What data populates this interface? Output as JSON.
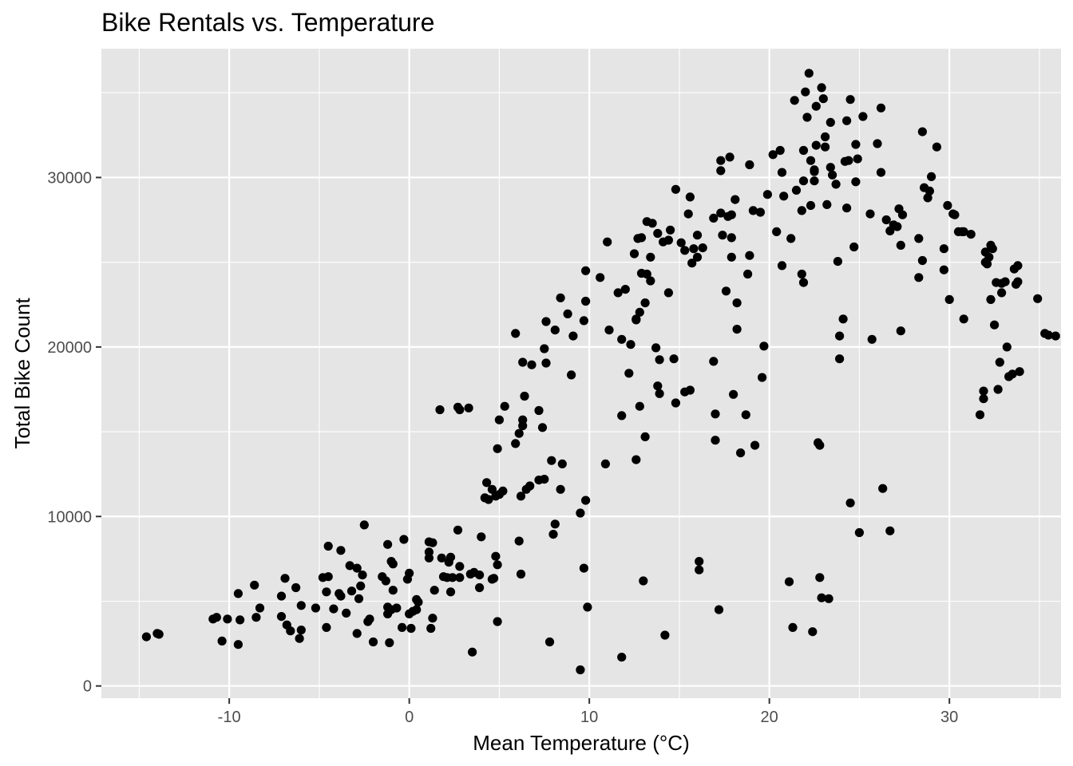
{
  "chart_data": {
    "type": "scatter",
    "title": "Bike Rentals vs. Temperature",
    "xlabel": "Mean Temperature (°C)",
    "ylabel": "Total Bike Count",
    "xlim": [
      -17.1,
      36.2
    ],
    "ylim": [
      -720,
      37600
    ],
    "x_ticks": [
      -10,
      0,
      10,
      20,
      30
    ],
    "x_tick_labels": [
      "-10",
      "0",
      "10",
      "20",
      "30"
    ],
    "y_ticks": [
      0,
      10000,
      20000,
      30000
    ],
    "y_tick_labels": [
      "0",
      "10000",
      "20000",
      "30000"
    ],
    "grid": true,
    "legend": "none",
    "colors": {
      "panel": "#e5e5e5",
      "grid": "#ffffff",
      "point": "#000000",
      "tick": "#4d4d4d"
    },
    "points": [
      [
        -14.6,
        2900
      ],
      [
        -14.0,
        3100
      ],
      [
        -13.9,
        3050
      ],
      [
        -10.9,
        3950
      ],
      [
        -10.7,
        4050
      ],
      [
        -10.4,
        2650
      ],
      [
        -10.1,
        3950
      ],
      [
        -9.5,
        5450
      ],
      [
        -9.4,
        3900
      ],
      [
        -9.5,
        2450
      ],
      [
        -8.6,
        5950
      ],
      [
        -8.5,
        4050
      ],
      [
        -8.3,
        4600
      ],
      [
        -7.1,
        5300
      ],
      [
        -7.1,
        4100
      ],
      [
        -6.9,
        6350
      ],
      [
        -6.8,
        3600
      ],
      [
        -6.6,
        3250
      ],
      [
        -6.3,
        5800
      ],
      [
        -6.1,
        2800
      ],
      [
        -6.0,
        4750
      ],
      [
        -6.0,
        3300
      ],
      [
        -5.2,
        4600
      ],
      [
        -4.8,
        6400
      ],
      [
        -4.6,
        5550
      ],
      [
        -4.6,
        3450
      ],
      [
        -4.5,
        6450
      ],
      [
        -4.5,
        8250
      ],
      [
        -4.2,
        4550
      ],
      [
        -3.9,
        5450
      ],
      [
        -3.8,
        8000
      ],
      [
        -3.8,
        5300
      ],
      [
        -3.5,
        4300
      ],
      [
        -3.3,
        7100
      ],
      [
        -3.2,
        5600
      ],
      [
        -2.9,
        6950
      ],
      [
        -2.9,
        3100
      ],
      [
        -2.8,
        5150
      ],
      [
        -2.7,
        5900
      ],
      [
        -2.6,
        6550
      ],
      [
        -2.5,
        9500
      ],
      [
        -2.3,
        3800
      ],
      [
        -2.2,
        3950
      ],
      [
        -2.0,
        2600
      ],
      [
        -1.5,
        6450
      ],
      [
        -1.3,
        6200
      ],
      [
        -1.2,
        4250
      ],
      [
        -1.2,
        4650
      ],
      [
        -1.2,
        8350
      ],
      [
        -1.1,
        2550
      ],
      [
        -1.0,
        4500
      ],
      [
        -1.0,
        7350
      ],
      [
        -0.9,
        7200
      ],
      [
        -0.9,
        5650
      ],
      [
        -0.7,
        4600
      ],
      [
        -0.4,
        3450
      ],
      [
        -0.3,
        8650
      ],
      [
        -0.1,
        6300
      ],
      [
        0.0,
        6650
      ],
      [
        0.0,
        4250
      ],
      [
        0.1,
        3400
      ],
      [
        0.2,
        4400
      ],
      [
        0.4,
        5100
      ],
      [
        0.4,
        4500
      ],
      [
        0.5,
        4950
      ],
      [
        1.1,
        7550
      ],
      [
        1.1,
        7900
      ],
      [
        1.1,
        8500
      ],
      [
        1.2,
        3400
      ],
      [
        1.3,
        4000
      ],
      [
        1.3,
        8450
      ],
      [
        1.4,
        5650
      ],
      [
        1.7,
        16300
      ],
      [
        1.8,
        7550
      ],
      [
        1.9,
        6450
      ],
      [
        2.1,
        6400
      ],
      [
        2.2,
        7300
      ],
      [
        2.3,
        7600
      ],
      [
        2.3,
        5550
      ],
      [
        2.4,
        6400
      ],
      [
        2.7,
        16450
      ],
      [
        2.7,
        9200
      ],
      [
        2.8,
        7050
      ],
      [
        2.8,
        16300
      ],
      [
        2.8,
        6400
      ],
      [
        3.3,
        16400
      ],
      [
        3.4,
        6600
      ],
      [
        3.5,
        2000
      ],
      [
        3.6,
        6700
      ],
      [
        3.9,
        5800
      ],
      [
        3.9,
        6550
      ],
      [
        4.0,
        8800
      ],
      [
        4.2,
        11100
      ],
      [
        4.3,
        12000
      ],
      [
        4.4,
        11000
      ],
      [
        4.6,
        6300
      ],
      [
        4.6,
        11600
      ],
      [
        4.7,
        6350
      ],
      [
        4.8,
        7650
      ],
      [
        4.8,
        11200
      ],
      [
        4.9,
        14000
      ],
      [
        4.9,
        7150
      ],
      [
        4.9,
        3800
      ],
      [
        5.0,
        11300
      ],
      [
        5.0,
        15700
      ],
      [
        5.2,
        11500
      ],
      [
        5.3,
        16500
      ],
      [
        5.9,
        20800
      ],
      [
        5.9,
        14300
      ],
      [
        6.1,
        8550
      ],
      [
        6.1,
        14900
      ],
      [
        6.2,
        6600
      ],
      [
        6.2,
        11200
      ],
      [
        6.3,
        19100
      ],
      [
        6.3,
        15700
      ],
      [
        6.3,
        15350
      ],
      [
        6.4,
        17100
      ],
      [
        6.5,
        11600
      ],
      [
        6.7,
        11800
      ],
      [
        6.8,
        18950
      ],
      [
        7.2,
        16250
      ],
      [
        7.2,
        12150
      ],
      [
        7.4,
        15250
      ],
      [
        7.5,
        19900
      ],
      [
        7.5,
        12200
      ],
      [
        7.6,
        19050
      ],
      [
        7.6,
        21500
      ],
      [
        7.8,
        2600
      ],
      [
        7.9,
        13300
      ],
      [
        8.0,
        8950
      ],
      [
        8.1,
        21000
      ],
      [
        8.1,
        9550
      ],
      [
        8.4,
        22900
      ],
      [
        8.4,
        11600
      ],
      [
        8.5,
        13100
      ],
      [
        8.8,
        21950
      ],
      [
        9.0,
        18350
      ],
      [
        9.1,
        20650
      ],
      [
        9.5,
        10200
      ],
      [
        9.5,
        950
      ],
      [
        9.7,
        6950
      ],
      [
        9.7,
        21550
      ],
      [
        9.8,
        22700
      ],
      [
        9.8,
        24500
      ],
      [
        9.8,
        10950
      ],
      [
        9.9,
        4650
      ],
      [
        10.6,
        24100
      ],
      [
        10.9,
        13100
      ],
      [
        11.0,
        26200
      ],
      [
        11.1,
        21000
      ],
      [
        11.6,
        23200
      ],
      [
        11.8,
        20450
      ],
      [
        11.8,
        15950
      ],
      [
        11.8,
        1700
      ],
      [
        12.0,
        23400
      ],
      [
        12.2,
        18450
      ],
      [
        12.3,
        20150
      ],
      [
        12.5,
        25500
      ],
      [
        12.6,
        21650
      ],
      [
        12.6,
        21600
      ],
      [
        12.6,
        13350
      ],
      [
        12.7,
        26400
      ],
      [
        12.8,
        22050
      ],
      [
        12.8,
        16500
      ],
      [
        12.9,
        24350
      ],
      [
        12.9,
        26450
      ],
      [
        13.0,
        6200
      ],
      [
        13.1,
        22600
      ],
      [
        13.1,
        14700
      ],
      [
        13.2,
        27400
      ],
      [
        13.2,
        24300
      ],
      [
        13.4,
        23900
      ],
      [
        13.4,
        25300
      ],
      [
        13.5,
        27300
      ],
      [
        13.7,
        19950
      ],
      [
        13.8,
        17700
      ],
      [
        13.8,
        26700
      ],
      [
        13.9,
        19250
      ],
      [
        13.9,
        17250
      ],
      [
        14.1,
        26200
      ],
      [
        14.2,
        3000
      ],
      [
        14.4,
        26300
      ],
      [
        14.4,
        23200
      ],
      [
        14.5,
        26900
      ],
      [
        14.7,
        19300
      ],
      [
        14.8,
        16700
      ],
      [
        14.8,
        29300
      ],
      [
        15.1,
        26150
      ],
      [
        15.3,
        25700
      ],
      [
        15.3,
        17350
      ],
      [
        15.5,
        27850
      ],
      [
        15.6,
        28850
      ],
      [
        15.6,
        17450
      ],
      [
        15.7,
        24950
      ],
      [
        15.8,
        25800
      ],
      [
        16.0,
        26600
      ],
      [
        16.0,
        25300
      ],
      [
        16.1,
        7350
      ],
      [
        16.1,
        6850
      ],
      [
        16.3,
        25850
      ],
      [
        16.9,
        27600
      ],
      [
        16.9,
        19150
      ],
      [
        17.0,
        16050
      ],
      [
        17.0,
        14500
      ],
      [
        17.2,
        4500
      ],
      [
        17.3,
        31000
      ],
      [
        17.3,
        27900
      ],
      [
        17.3,
        30400
      ],
      [
        17.4,
        26600
      ],
      [
        17.6,
        23300
      ],
      [
        17.7,
        27700
      ],
      [
        17.8,
        31200
      ],
      [
        17.9,
        27800
      ],
      [
        17.9,
        26450
      ],
      [
        17.9,
        25300
      ],
      [
        18.0,
        17200
      ],
      [
        18.1,
        28700
      ],
      [
        18.2,
        21050
      ],
      [
        18.2,
        22600
      ],
      [
        18.4,
        13750
      ],
      [
        18.7,
        16000
      ],
      [
        18.8,
        24300
      ],
      [
        18.9,
        25400
      ],
      [
        18.9,
        30750
      ],
      [
        19.1,
        28050
      ],
      [
        19.2,
        14200
      ],
      [
        19.5,
        27950
      ],
      [
        19.6,
        18200
      ],
      [
        19.7,
        20050
      ],
      [
        19.9,
        29000
      ],
      [
        20.2,
        31350
      ],
      [
        20.4,
        26800
      ],
      [
        20.6,
        31600
      ],
      [
        20.7,
        24800
      ],
      [
        20.7,
        30300
      ],
      [
        20.8,
        28900
      ],
      [
        21.1,
        6150
      ],
      [
        21.2,
        26400
      ],
      [
        21.3,
        3450
      ],
      [
        21.4,
        34550
      ],
      [
        21.5,
        29250
      ],
      [
        21.8,
        24300
      ],
      [
        21.8,
        28050
      ],
      [
        21.9,
        31600
      ],
      [
        21.9,
        23800
      ],
      [
        21.9,
        29800
      ],
      [
        22.0,
        35050
      ],
      [
        22.1,
        33550
      ],
      [
        22.2,
        36150
      ],
      [
        22.3,
        31000
      ],
      [
        22.3,
        28350
      ],
      [
        22.4,
        3200
      ],
      [
        22.5,
        30350
      ],
      [
        22.5,
        29800
      ],
      [
        22.5,
        30450
      ],
      [
        22.6,
        34200
      ],
      [
        22.6,
        31900
      ],
      [
        22.7,
        14350
      ],
      [
        22.8,
        14200
      ],
      [
        22.8,
        6400
      ],
      [
        22.9,
        5200
      ],
      [
        22.9,
        35300
      ],
      [
        23.0,
        34650
      ],
      [
        23.1,
        32400
      ],
      [
        23.1,
        31800
      ],
      [
        23.2,
        28400
      ],
      [
        23.3,
        5150
      ],
      [
        23.4,
        30600
      ],
      [
        23.4,
        33250
      ],
      [
        23.5,
        30150
      ],
      [
        23.7,
        29600
      ],
      [
        23.8,
        25050
      ],
      [
        23.9,
        19300
      ],
      [
        23.9,
        20650
      ],
      [
        24.1,
        21650
      ],
      [
        24.2,
        30950
      ],
      [
        24.3,
        28200
      ],
      [
        24.3,
        33350
      ],
      [
        24.4,
        31000
      ],
      [
        24.5,
        34600
      ],
      [
        24.5,
        10800
      ],
      [
        24.7,
        25900
      ],
      [
        24.8,
        29750
      ],
      [
        24.8,
        31950
      ],
      [
        24.9,
        31100
      ],
      [
        25.0,
        9050
      ],
      [
        25.2,
        33600
      ],
      [
        25.6,
        27850
      ],
      [
        25.7,
        20450
      ],
      [
        26.0,
        32000
      ],
      [
        26.2,
        34100
      ],
      [
        26.2,
        30300
      ],
      [
        26.3,
        11650
      ],
      [
        26.5,
        27500
      ],
      [
        26.7,
        9150
      ],
      [
        26.7,
        26850
      ],
      [
        26.9,
        27200
      ],
      [
        27.1,
        27100
      ],
      [
        27.2,
        28150
      ],
      [
        27.3,
        26000
      ],
      [
        27.3,
        20950
      ],
      [
        27.4,
        27800
      ],
      [
        28.3,
        26400
      ],
      [
        28.3,
        24100
      ],
      [
        28.5,
        32700
      ],
      [
        28.5,
        25100
      ],
      [
        28.6,
        29400
      ],
      [
        28.8,
        28800
      ],
      [
        28.9,
        29200
      ],
      [
        29.0,
        30050
      ],
      [
        29.3,
        31800
      ],
      [
        29.7,
        25800
      ],
      [
        29.7,
        24550
      ],
      [
        29.9,
        28350
      ],
      [
        30.0,
        22800
      ],
      [
        30.2,
        27850
      ],
      [
        30.3,
        27800
      ],
      [
        30.5,
        26800
      ],
      [
        30.7,
        26800
      ],
      [
        30.8,
        21650
      ],
      [
        30.8,
        26800
      ],
      [
        31.2,
        26650
      ],
      [
        31.7,
        16000
      ],
      [
        31.9,
        17400
      ],
      [
        31.9,
        16950
      ],
      [
        32.0,
        25000
      ],
      [
        32.0,
        25600
      ],
      [
        32.1,
        24900
      ],
      [
        32.2,
        25300
      ],
      [
        32.3,
        22800
      ],
      [
        32.3,
        26000
      ],
      [
        32.4,
        25800
      ],
      [
        32.5,
        21300
      ],
      [
        32.6,
        23800
      ],
      [
        32.7,
        17500
      ],
      [
        32.8,
        19100
      ],
      [
        32.9,
        23200
      ],
      [
        32.9,
        23750
      ],
      [
        33.1,
        23850
      ],
      [
        33.2,
        20000
      ],
      [
        33.3,
        18250
      ],
      [
        33.5,
        18400
      ],
      [
        33.6,
        24600
      ],
      [
        33.7,
        23700
      ],
      [
        33.8,
        24800
      ],
      [
        33.8,
        23850
      ],
      [
        33.9,
        18550
      ],
      [
        34.9,
        22850
      ],
      [
        35.3,
        20800
      ],
      [
        35.5,
        20700
      ],
      [
        35.9,
        20650
      ]
    ]
  }
}
